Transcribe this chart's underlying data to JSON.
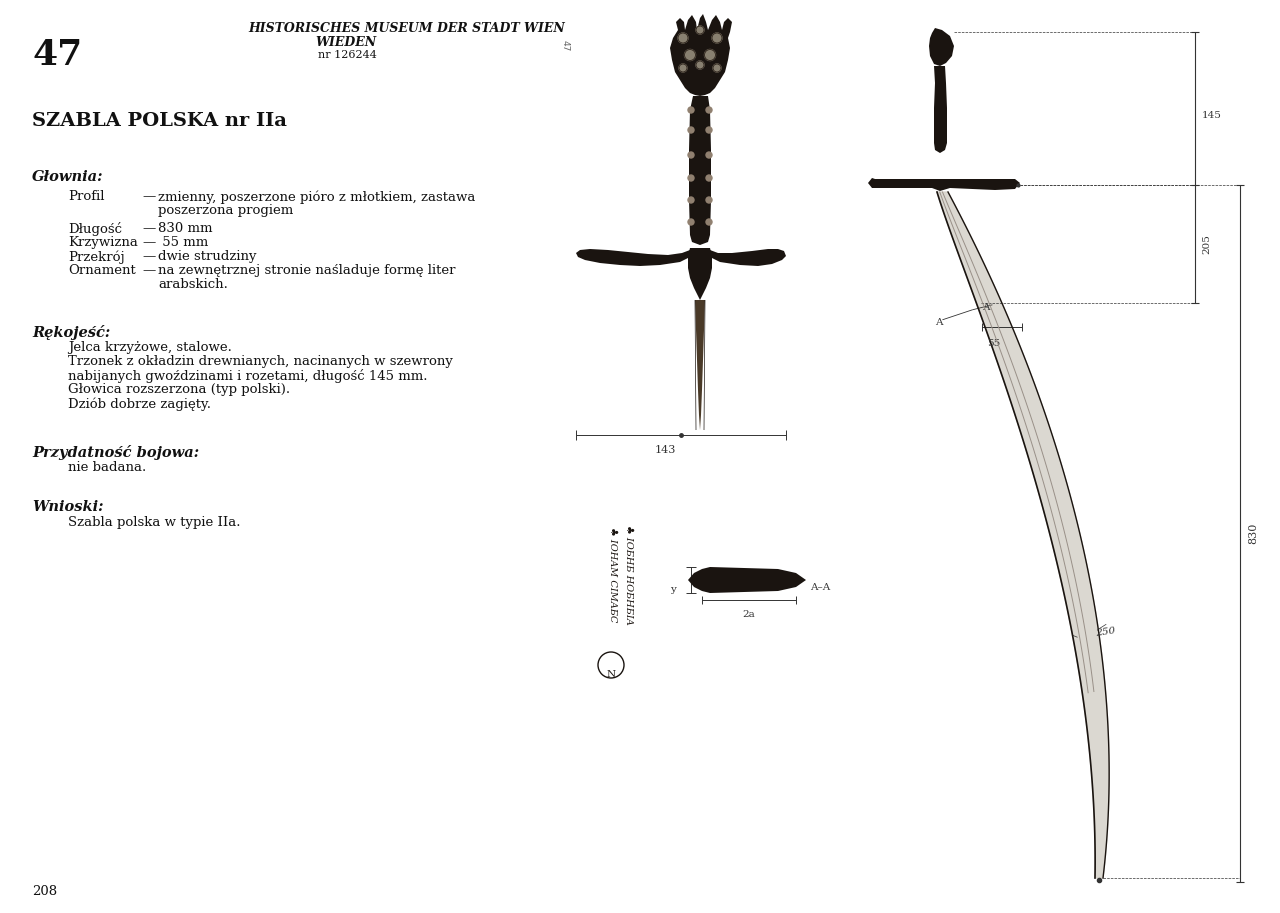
{
  "page_number": "47",
  "page_bottom_number": "208",
  "header_line1": "HISTORISCHES MUSEUM DER STADT WIEN",
  "header_line2": "WIEDEN",
  "header_line3": "nr 126244",
  "title": "SZABLA POLSKA nr IIa",
  "section1_header": "Głownia:",
  "profil_label": "Profil",
  "profil_dash": "—",
  "profil_text1": "zmienny, poszerzone pióro z młotkiem, zastawa",
  "profil_text2": "poszerzona progiem",
  "dlugosc_label": "Długość",
  "dlugosc_dash": "—",
  "dlugosc_value": "830 mm",
  "krzywizna_label": "Krzywizna",
  "krzywizna_dash": "—",
  "krzywizna_value": " 55 mm",
  "przekroj_label": "Przekrój",
  "przekroj_dash": "—",
  "przekroj_value": "dwie strudziny",
  "ornament_label": "Ornament",
  "ornament_dash": "—",
  "ornament_text1": "na zewnętrznej stronie naśladuje formę liter",
  "ornament_text2": "arabskich.",
  "section2_header": "Rękojeść:",
  "rekojes_line1": "Jelca krzyżowe, stalowe.",
  "rekojes_line2": "Trzonek z okładzin drewnianych, nacinanych w szewrony",
  "rekojes_line3": "nabijanych gwoździnami i rozetami, długość 145 mm.",
  "rekojes_line4": "Głowica rozszerzona (typ polski).",
  "rekojes_line5": "Dziób dobrze zagięty.",
  "section3_header": "Przydatność bojowa:",
  "przyd_value": "nie badana.",
  "section4_header": "Wnioski:",
  "wniosek": "Szabla polska w typie IIa.",
  "bg_color": "#ffffff",
  "text_color": "#111111",
  "dim_143": "143",
  "dim_145": "145",
  "dim_205": "205",
  "dim_830": "830",
  "dim_55": "55",
  "dim_250": "250",
  "dim_y": "y",
  "dim_2a": "2a",
  "dim_aa": "A–A",
  "dim_A": "A",
  "sword_dark": "#1a1410",
  "sword_mid": "#4a3a28",
  "sword_gray": "#888880",
  "dim_color": "#333333",
  "line_color": "#222222"
}
